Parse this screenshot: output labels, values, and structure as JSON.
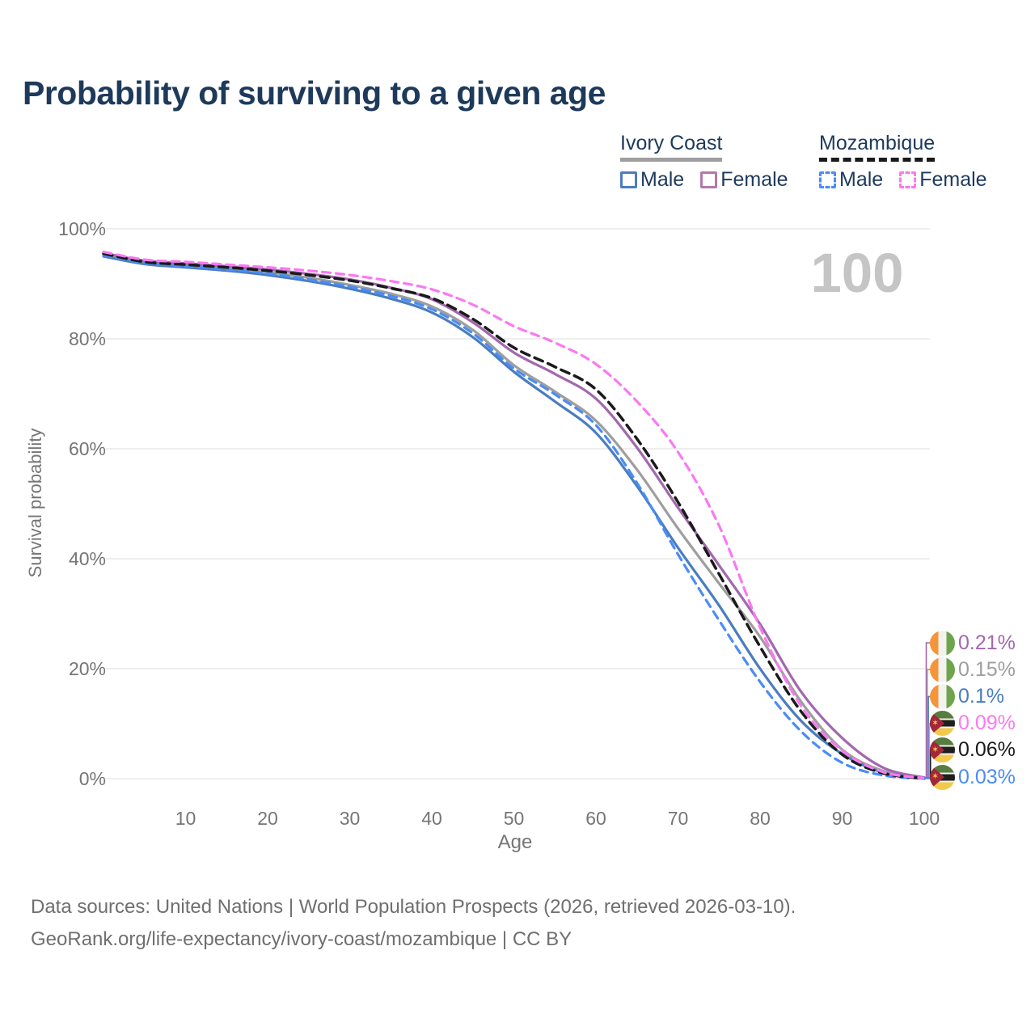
{
  "title": "Probability of surviving to a given age",
  "watermark": "100",
  "legend": {
    "groups": [
      {
        "country": "Ivory Coast",
        "line_style": "solid",
        "underline_color": "#9e9e9e",
        "items": [
          {
            "label": "Male",
            "color": "#4a7dbf"
          },
          {
            "label": "Female",
            "color": "#b279ab"
          }
        ]
      },
      {
        "country": "Mozambique",
        "line_style": "dashed",
        "underline_color": "#1a1a1a",
        "items": [
          {
            "label": "Male",
            "color": "#4b8cf5"
          },
          {
            "label": "Female",
            "color": "#fb78f2"
          }
        ]
      }
    ]
  },
  "chart_data": {
    "type": "line",
    "xlabel": "Age",
    "ylabel": "Survival probability",
    "xlim": [
      0,
      100
    ],
    "ylim": [
      0,
      100
    ],
    "grid": "horizontal",
    "x_ticks": [
      10,
      20,
      30,
      40,
      50,
      60,
      70,
      80,
      90,
      100
    ],
    "y_ticks": [
      0,
      20,
      40,
      60,
      80,
      100
    ],
    "y_tick_labels": [
      "0%",
      "20%",
      "40%",
      "60%",
      "80%",
      "100%"
    ],
    "ages": [
      0,
      5,
      10,
      15,
      20,
      25,
      30,
      35,
      40,
      45,
      50,
      55,
      60,
      65,
      70,
      75,
      80,
      85,
      90,
      95,
      100
    ],
    "series": [
      {
        "id": "ci-both",
        "country": "Ivory Coast",
        "group": "Both",
        "color": "#9e9e9e",
        "dash": null,
        "values": [
          95.4,
          93.9,
          93.3,
          92.8,
          92.1,
          91.1,
          89.8,
          88.2,
          85.9,
          81.6,
          75.2,
          70.4,
          65.1,
          56.2,
          45.5,
          35.5,
          25.8,
          14.0,
          5.3,
          1.4,
          0.15
        ]
      },
      {
        "id": "ci-female",
        "country": "Ivory Coast",
        "group": "Female",
        "color": "#a268ae",
        "dash": null,
        "values": [
          95.6,
          94.2,
          93.7,
          93.2,
          92.6,
          91.8,
          90.8,
          89.3,
          87.2,
          83.0,
          77.5,
          73.6,
          69.1,
          60.2,
          49.3,
          38.8,
          28.1,
          15.8,
          7.4,
          2.0,
          0.21
        ]
      },
      {
        "id": "ci-male",
        "country": "Ivory Coast",
        "group": "Male",
        "color": "#4a7dbf",
        "dash": null,
        "values": [
          95.0,
          93.6,
          93.0,
          92.4,
          91.6,
          90.5,
          89.1,
          87.3,
          84.8,
          80.3,
          74.0,
          68.6,
          62.9,
          53.2,
          42.0,
          31.5,
          20.0,
          10.5,
          4.5,
          1.1,
          0.1
        ]
      },
      {
        "id": "mz-male",
        "country": "Mozambique",
        "group": "Male",
        "color": "#4b8cf5",
        "dash": "10 7",
        "values": [
          95.2,
          93.8,
          93.2,
          92.6,
          91.9,
          90.8,
          89.5,
          87.8,
          85.4,
          81.0,
          74.6,
          69.9,
          64.3,
          53.8,
          40.8,
          28.8,
          17.6,
          8.6,
          2.9,
          0.6,
          0.03
        ]
      },
      {
        "id": "mz-both",
        "country": "Mozambique",
        "group": "Both",
        "color": "#1a1a1a",
        "dash": "11 7",
        "values": [
          95.5,
          94.0,
          93.5,
          93.0,
          92.4,
          91.6,
          90.6,
          89.2,
          87.4,
          83.6,
          78.4,
          74.9,
          70.8,
          61.8,
          50.3,
          37.2,
          24.0,
          12.2,
          4.4,
          1.0,
          0.06
        ]
      },
      {
        "id": "mz-female",
        "country": "Mozambique",
        "group": "Female",
        "color": "#fb78f2",
        "dash": "10 7",
        "values": [
          95.8,
          94.4,
          94.0,
          93.5,
          93.0,
          92.4,
          91.6,
          90.5,
          89.0,
          86.2,
          82.3,
          79.3,
          75.4,
          68.6,
          59.4,
          46.0,
          27.5,
          13.2,
          5.1,
          1.2,
          0.09
        ]
      }
    ],
    "end_labels": [
      {
        "text": "0.21%",
        "color": "#a268ae",
        "flag": "ci",
        "series": "ci-female"
      },
      {
        "text": "0.15%",
        "color": "#9e9e9e",
        "flag": "ci",
        "series": "ci-both"
      },
      {
        "text": "0.1%",
        "color": "#4a7dbf",
        "flag": "ci",
        "series": "ci-male"
      },
      {
        "text": "0.09%",
        "color": "#fb78f2",
        "flag": "mz",
        "series": "mz-female"
      },
      {
        "text": "0.06%",
        "color": "#1a1a1a",
        "flag": "mz",
        "series": "mz-both"
      },
      {
        "text": "0.03%",
        "color": "#4b8cf5",
        "flag": "mz",
        "series": "mz-male"
      }
    ]
  },
  "footer": {
    "line1": "Data sources: United Nations | World Population Prospects (2026, retrieved 2026-03-10).",
    "line2": "GeoRank.org/life-expectancy/ivory-coast/mozambique | CC BY"
  }
}
